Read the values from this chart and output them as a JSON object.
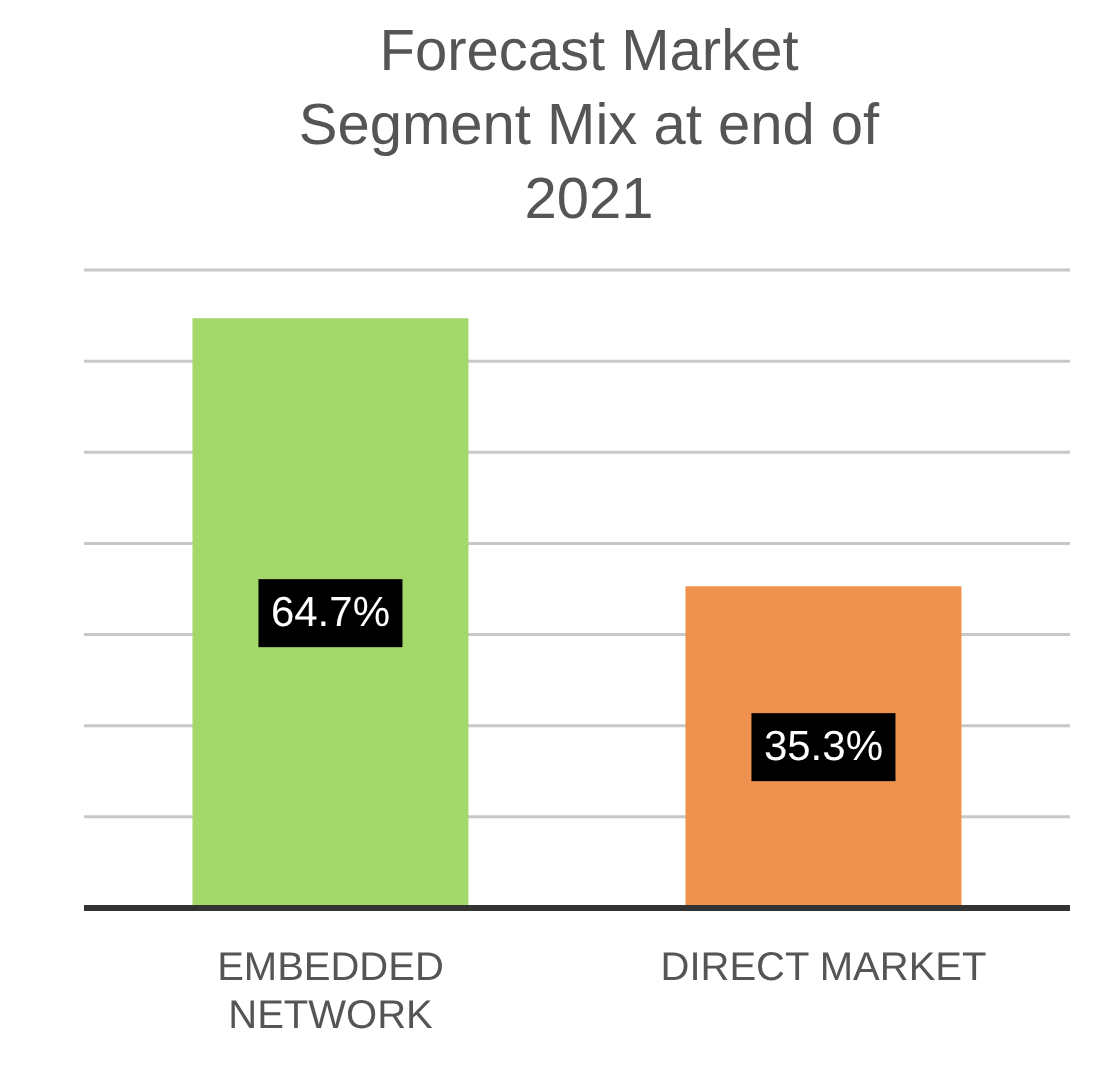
{
  "chart_data": {
    "type": "bar",
    "title": "Forecast Market Segment Mix at end of 2021",
    "categories": [
      "EMBEDDED NETWORK",
      "DIRECT MARKET"
    ],
    "values": [
      64.7,
      35.3
    ],
    "colors": [
      "#a5d86a",
      "#f0924f"
    ],
    "value_labels": [
      "64.7%",
      "35.3%"
    ],
    "ylim": [
      0,
      70
    ],
    "yticks": [
      0,
      10,
      20,
      30,
      40,
      50,
      60,
      70
    ],
    "grid": "y",
    "tick_labels": "x",
    "legend": false
  }
}
